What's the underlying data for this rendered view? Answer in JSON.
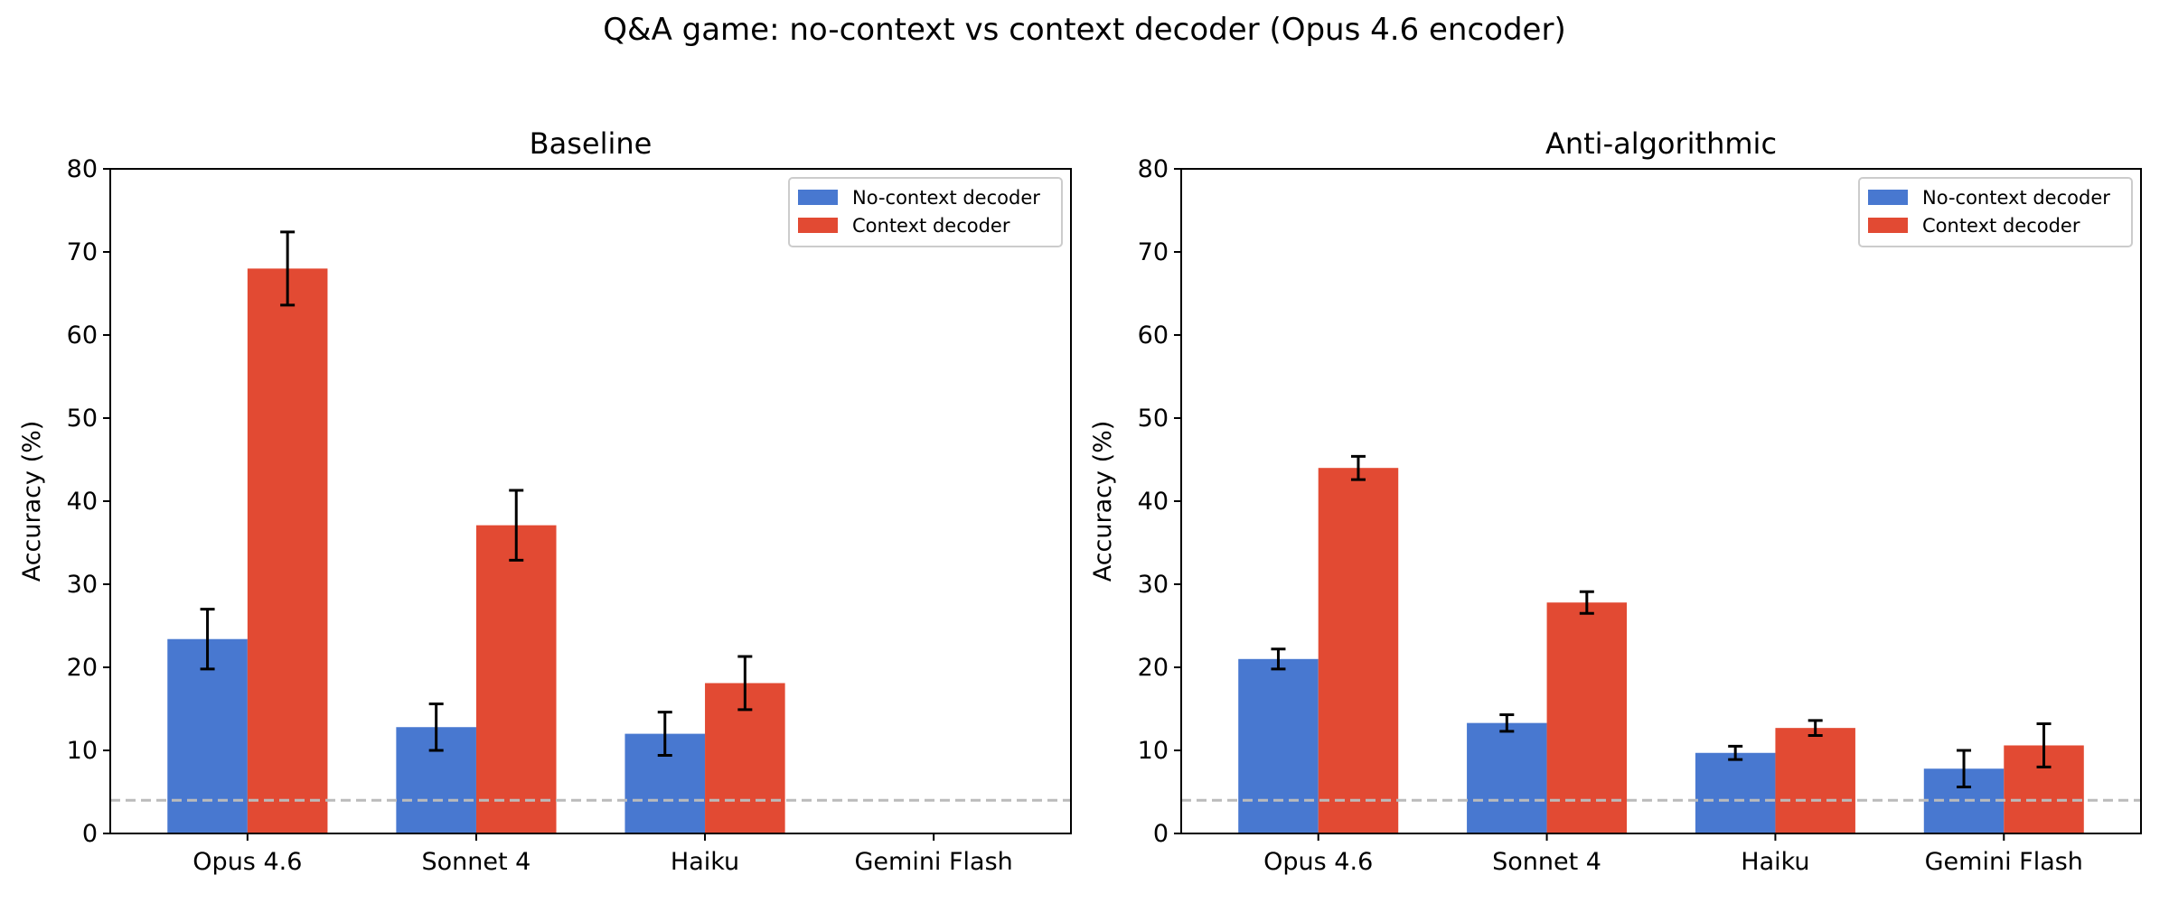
{
  "suptitle": "Q&A game: no-context vs context decoder (Opus 4.6 encoder)",
  "colors": {
    "no_context": "#4878d0",
    "context": "#e24a33",
    "chance_line": "#bbbbbb",
    "errorbar": "#000000"
  },
  "chart_data": [
    {
      "type": "bar",
      "title": "Baseline",
      "xlabel": "",
      "ylabel": "Accuracy (%)",
      "ylim": [
        0,
        80
      ],
      "yticks": [
        0,
        10,
        20,
        30,
        40,
        50,
        60,
        70,
        80
      ],
      "categories": [
        "Opus 4.6",
        "Sonnet 4",
        "Haiku",
        "Gemini Flash"
      ],
      "series": [
        {
          "name": "No-context decoder",
          "values": [
            23.4,
            12.8,
            12.0,
            null
          ],
          "errors": [
            3.6,
            2.8,
            2.6,
            null
          ]
        },
        {
          "name": "Context decoder",
          "values": [
            68.0,
            37.1,
            18.1,
            null
          ],
          "errors": [
            4.4,
            4.2,
            3.2,
            null
          ]
        }
      ],
      "chance_level": 4.0,
      "legend_position": "top-right"
    },
    {
      "type": "bar",
      "title": "Anti-algorithmic",
      "xlabel": "",
      "ylabel": "Accuracy (%)",
      "ylim": [
        0,
        80
      ],
      "yticks": [
        0,
        10,
        20,
        30,
        40,
        50,
        60,
        70,
        80
      ],
      "categories": [
        "Opus 4.6",
        "Sonnet 4",
        "Haiku",
        "Gemini Flash"
      ],
      "series": [
        {
          "name": "No-context decoder",
          "values": [
            21.0,
            13.3,
            9.7,
            7.8
          ],
          "errors": [
            1.2,
            1.0,
            0.8,
            2.2
          ]
        },
        {
          "name": "Context decoder",
          "values": [
            44.0,
            27.8,
            12.7,
            10.6
          ],
          "errors": [
            1.4,
            1.3,
            0.9,
            2.6
          ]
        }
      ],
      "chance_level": 4.0,
      "legend_position": "top-right"
    }
  ]
}
